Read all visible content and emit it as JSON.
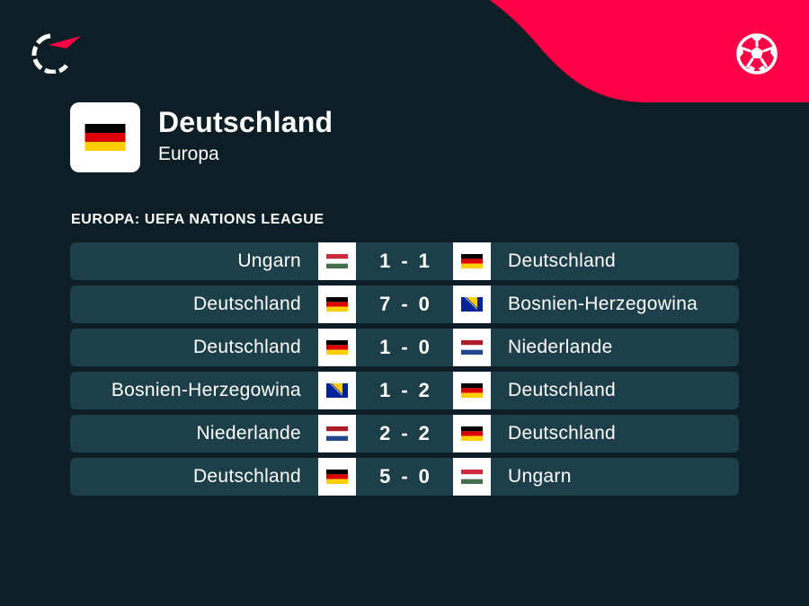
{
  "colors": {
    "background": "#0e1e27",
    "accent": "#ff0046",
    "row_background": "#1d3f4a"
  },
  "icons": {
    "brand": "flashscore-logo-icon",
    "sport": "football-icon"
  },
  "team": {
    "name": "Deutschland",
    "region": "Europa",
    "flag": "de"
  },
  "competition": {
    "label": "EUROPA: UEFA NATIONS LEAGUE"
  },
  "matches": [
    {
      "home": "Ungarn",
      "home_flag": "hu",
      "home_score": "1",
      "away_score": "1",
      "away": "Deutschland",
      "away_flag": "de"
    },
    {
      "home": "Deutschland",
      "home_flag": "de",
      "home_score": "7",
      "away_score": "0",
      "away": "Bosnien-Herzegowina",
      "away_flag": "ba"
    },
    {
      "home": "Deutschland",
      "home_flag": "de",
      "home_score": "1",
      "away_score": "0",
      "away": "Niederlande",
      "away_flag": "nl"
    },
    {
      "home": "Bosnien-Herzegowina",
      "home_flag": "ba",
      "home_score": "1",
      "away_score": "2",
      "away": "Deutschland",
      "away_flag": "de"
    },
    {
      "home": "Niederlande",
      "home_flag": "nl",
      "home_score": "2",
      "away_score": "2",
      "away": "Deutschland",
      "away_flag": "de"
    },
    {
      "home": "Deutschland",
      "home_flag": "de",
      "home_score": "5",
      "away_score": "0",
      "away": "Ungarn",
      "away_flag": "hu"
    }
  ]
}
